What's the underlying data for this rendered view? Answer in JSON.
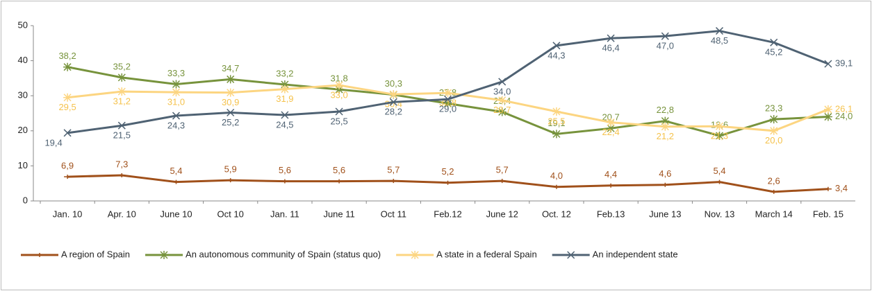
{
  "chart_data": {
    "type": "line",
    "categories": [
      "Jan. 10",
      "Apr. 10",
      "June 10",
      "Oct 10",
      "Jan. 11",
      "June 11",
      "Oct 11",
      "Feb.12",
      "June 12",
      "Oct. 12",
      "Feb.13",
      "June 13",
      "Nov. 13",
      "March 14",
      "Feb. 15"
    ],
    "series": [
      {
        "name": "A region of Spain",
        "color": "#a0501a",
        "marker": "plus",
        "values": [
          6.9,
          7.3,
          5.4,
          5.9,
          5.6,
          5.6,
          5.7,
          5.2,
          5.7,
          4.0,
          4.4,
          4.6,
          5.4,
          2.6,
          3.4
        ],
        "value_labels": [
          "6,9",
          "7,3",
          "5,4",
          "5,9",
          "5,6",
          "5,6",
          "5,7",
          "5,2",
          "5,7",
          "4,0",
          "4,4",
          "4,6",
          "5,4",
          "2,6",
          "3,4"
        ]
      },
      {
        "name": "An autonomous community of Spain (status quo)",
        "color": "#77933c",
        "marker": "star",
        "values": [
          38.2,
          35.2,
          33.3,
          34.7,
          33.2,
          31.8,
          30.3,
          27.8,
          25.4,
          19.1,
          20.7,
          22.8,
          18.6,
          23.3,
          24.0
        ],
        "value_labels": [
          "38,2",
          "35,2",
          "33,3",
          "34,7",
          "33,2",
          "31,8",
          "30,3",
          "27,8",
          "25,4",
          "19,1",
          "20,7",
          "22,8",
          "18,6",
          "23,3",
          "24,0"
        ]
      },
      {
        "name": "A state in a federal Spain",
        "color": "#fcd581",
        "marker": "star",
        "values": [
          29.5,
          31.2,
          31.0,
          30.9,
          31.9,
          33.0,
          30.4,
          30.8,
          28.7,
          25.5,
          22.4,
          21.2,
          21.3,
          20.0,
          26.1
        ],
        "value_labels": [
          "29,5",
          "31,2",
          "31,0",
          "30,9",
          "31,9",
          "33,0",
          "30,4",
          "30,8",
          "28,7",
          "25,5",
          "22,4",
          "21,2",
          "21,3",
          "20,0",
          "26,1"
        ]
      },
      {
        "name": "An independent state",
        "color": "#4f6273",
        "marker": "x",
        "values": [
          19.4,
          21.5,
          24.3,
          25.2,
          24.5,
          25.5,
          28.2,
          29.0,
          34.0,
          44.3,
          46.4,
          47.0,
          48.5,
          45.2,
          39.1
        ],
        "value_labels": [
          "19,4",
          "21,5",
          "24,3",
          "25,2",
          "24,5",
          "25,5",
          "28,2",
          "29,0",
          "34,0",
          "44,3",
          "46,4",
          "47,0",
          "48,5",
          "45,2",
          "39,1"
        ]
      }
    ],
    "ylim": [
      0,
      50
    ],
    "yticks": [
      0,
      10,
      20,
      30,
      40,
      50
    ],
    "grid": false,
    "legend": "bottom"
  }
}
